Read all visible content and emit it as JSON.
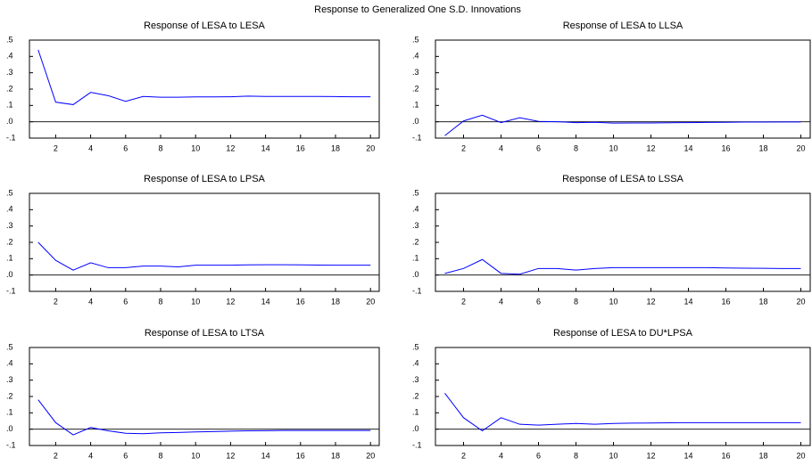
{
  "title": "Response to Generalized One S.D. Innovations",
  "chart_data": [
    {
      "type": "line",
      "title": "Response of LESA to LESA",
      "color": "#0000ff",
      "zero_line": true,
      "x": [
        1,
        2,
        3,
        4,
        5,
        6,
        7,
        8,
        9,
        10,
        11,
        12,
        13,
        14,
        15,
        16,
        17,
        18,
        19,
        20
      ],
      "values": [
        0.44,
        0.12,
        0.105,
        0.18,
        0.16,
        0.125,
        0.155,
        0.15,
        0.15,
        0.152,
        0.152,
        0.153,
        0.157,
        0.155,
        0.155,
        0.155,
        0.155,
        0.154,
        0.153,
        0.153
      ],
      "xlim": [
        0.5,
        20.5
      ],
      "xticks": [
        2,
        4,
        6,
        8,
        10,
        12,
        14,
        16,
        18,
        20
      ],
      "ylim": [
        -0.1,
        0.5
      ],
      "yticks": [
        {
          "value": -0.1,
          "label": "-.1"
        },
        {
          "value": 0,
          "label": ".0"
        },
        {
          "value": 0.1,
          "label": ".1"
        },
        {
          "value": 0.2,
          "label": ".2"
        },
        {
          "value": 0.3,
          "label": ".3"
        },
        {
          "value": 0.4,
          "label": ".4"
        },
        {
          "value": 0.5,
          "label": ".5"
        }
      ]
    },
    {
      "type": "line",
      "title": "Response of LESA to LLSA",
      "color": "#0000ff",
      "zero_line": true,
      "x": [
        1,
        2,
        3,
        4,
        5,
        6,
        7,
        8,
        9,
        10,
        11,
        12,
        13,
        14,
        15,
        16,
        17,
        18,
        19,
        20
      ],
      "values": [
        -0.085,
        0.005,
        0.04,
        -0.005,
        0.025,
        0.002,
        0.0,
        -0.005,
        -0.003,
        -0.008,
        -0.007,
        -0.007,
        -0.006,
        -0.005,
        -0.004,
        -0.003,
        -0.002,
        -0.002,
        -0.001,
        -0.001
      ],
      "xlim": [
        0.5,
        20.5
      ],
      "xticks": [
        2,
        4,
        6,
        8,
        10,
        12,
        14,
        16,
        18,
        20
      ],
      "ylim": [
        -0.1,
        0.5
      ],
      "yticks": [
        {
          "value": -0.1,
          "label": "-.1"
        },
        {
          "value": 0,
          "label": ".0"
        },
        {
          "value": 0.1,
          "label": ".1"
        },
        {
          "value": 0.2,
          "label": ".2"
        },
        {
          "value": 0.3,
          "label": ".3"
        },
        {
          "value": 0.4,
          "label": ".4"
        },
        {
          "value": 0.5,
          "label": ".5"
        }
      ]
    },
    {
      "type": "line",
      "title": "Response of LESA to LPSA",
      "color": "#0000ff",
      "zero_line": true,
      "x": [
        1,
        2,
        3,
        4,
        5,
        6,
        7,
        8,
        9,
        10,
        11,
        12,
        13,
        14,
        15,
        16,
        17,
        18,
        19,
        20
      ],
      "values": [
        0.2,
        0.09,
        0.03,
        0.075,
        0.045,
        0.045,
        0.055,
        0.055,
        0.05,
        0.06,
        0.06,
        0.06,
        0.062,
        0.063,
        0.063,
        0.062,
        0.061,
        0.06,
        0.06,
        0.06
      ],
      "xlim": [
        0.5,
        20.5
      ],
      "xticks": [
        2,
        4,
        6,
        8,
        10,
        12,
        14,
        16,
        18,
        20
      ],
      "ylim": [
        -0.1,
        0.5
      ],
      "yticks": [
        {
          "value": -0.1,
          "label": "-.1"
        },
        {
          "value": 0,
          "label": ".0"
        },
        {
          "value": 0.1,
          "label": ".1"
        },
        {
          "value": 0.2,
          "label": ".2"
        },
        {
          "value": 0.3,
          "label": ".3"
        },
        {
          "value": 0.4,
          "label": ".4"
        },
        {
          "value": 0.5,
          "label": ".5"
        }
      ]
    },
    {
      "type": "line",
      "title": "Response of LESA to LSSA",
      "color": "#0000ff",
      "zero_line": true,
      "x": [
        1,
        2,
        3,
        4,
        5,
        6,
        7,
        8,
        9,
        10,
        11,
        12,
        13,
        14,
        15,
        16,
        17,
        18,
        19,
        20
      ],
      "values": [
        0.01,
        0.04,
        0.095,
        0.01,
        0.005,
        0.04,
        0.04,
        0.03,
        0.04,
        0.045,
        0.045,
        0.045,
        0.045,
        0.045,
        0.045,
        0.043,
        0.042,
        0.041,
        0.04,
        0.04
      ],
      "xlim": [
        0.5,
        20.5
      ],
      "xticks": [
        2,
        4,
        6,
        8,
        10,
        12,
        14,
        16,
        18,
        20
      ],
      "ylim": [
        -0.1,
        0.5
      ],
      "yticks": [
        {
          "value": -0.1,
          "label": "-.1"
        },
        {
          "value": 0,
          "label": ".0"
        },
        {
          "value": 0.1,
          "label": ".1"
        },
        {
          "value": 0.2,
          "label": ".2"
        },
        {
          "value": 0.3,
          "label": ".3"
        },
        {
          "value": 0.4,
          "label": ".4"
        },
        {
          "value": 0.5,
          "label": ".5"
        }
      ]
    },
    {
      "type": "line",
      "title": "Response of LESA to LTSA",
      "color": "#0000ff",
      "zero_line": true,
      "x": [
        1,
        2,
        3,
        4,
        5,
        6,
        7,
        8,
        9,
        10,
        11,
        12,
        13,
        14,
        15,
        16,
        17,
        18,
        19,
        20
      ],
      "values": [
        0.18,
        0.04,
        -0.035,
        0.01,
        -0.01,
        -0.025,
        -0.028,
        -0.022,
        -0.02,
        -0.017,
        -0.015,
        -0.012,
        -0.01,
        -0.009,
        -0.008,
        -0.008,
        -0.008,
        -0.008,
        -0.008,
        -0.008
      ],
      "xlim": [
        0.5,
        20.5
      ],
      "xticks": [
        2,
        4,
        6,
        8,
        10,
        12,
        14,
        16,
        18,
        20
      ],
      "ylim": [
        -0.1,
        0.5
      ],
      "yticks": [
        {
          "value": -0.1,
          "label": "-.1"
        },
        {
          "value": 0,
          "label": ".0"
        },
        {
          "value": 0.1,
          "label": ".1"
        },
        {
          "value": 0.2,
          "label": ".2"
        },
        {
          "value": 0.3,
          "label": ".3"
        },
        {
          "value": 0.4,
          "label": ".4"
        },
        {
          "value": 0.5,
          "label": ".5"
        }
      ]
    },
    {
      "type": "line",
      "title": "Response of LESA to DU*LPSA",
      "color": "#0000ff",
      "zero_line": true,
      "x": [
        1,
        2,
        3,
        4,
        5,
        6,
        7,
        8,
        9,
        10,
        11,
        12,
        13,
        14,
        15,
        16,
        17,
        18,
        19,
        20
      ],
      "values": [
        0.22,
        0.07,
        -0.01,
        0.07,
        0.03,
        0.025,
        0.03,
        0.035,
        0.03,
        0.035,
        0.037,
        0.038,
        0.039,
        0.04,
        0.04,
        0.04,
        0.04,
        0.04,
        0.04,
        0.04
      ],
      "xlim": [
        0.5,
        20.5
      ],
      "xticks": [
        2,
        4,
        6,
        8,
        10,
        12,
        14,
        16,
        18,
        20
      ],
      "ylim": [
        -0.1,
        0.5
      ],
      "yticks": [
        {
          "value": -0.1,
          "label": "-.1"
        },
        {
          "value": 0,
          "label": ".0"
        },
        {
          "value": 0.1,
          "label": ".1"
        },
        {
          "value": 0.2,
          "label": ".2"
        },
        {
          "value": 0.3,
          "label": ".3"
        },
        {
          "value": 0.4,
          "label": ".4"
        },
        {
          "value": 0.5,
          "label": ".5"
        }
      ]
    }
  ]
}
